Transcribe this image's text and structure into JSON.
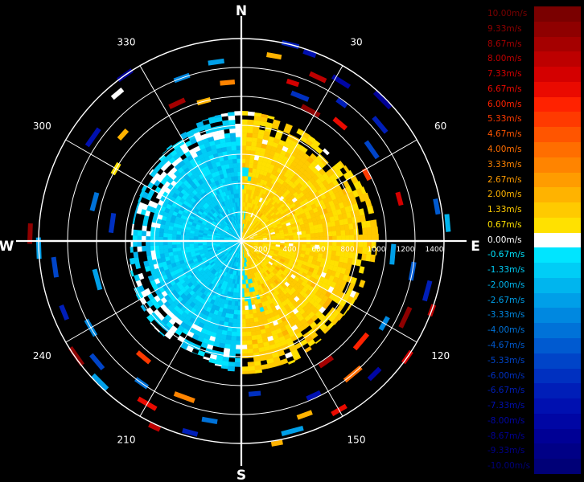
{
  "chart_data": {
    "type": "polar-heatmap",
    "title": "",
    "compass": {
      "north": "N",
      "east": "E",
      "south": "S",
      "west": "W"
    },
    "angle_labels": [
      {
        "deg": 30,
        "label": "30"
      },
      {
        "deg": 60,
        "label": "60"
      },
      {
        "deg": 120,
        "label": "120"
      },
      {
        "deg": 150,
        "label": "150"
      },
      {
        "deg": 210,
        "label": "210"
      },
      {
        "deg": 240,
        "label": "240"
      },
      {
        "deg": 300,
        "label": "300"
      },
      {
        "deg": 330,
        "label": "330"
      }
    ],
    "range_rings": [
      200,
      400,
      600,
      800,
      1000,
      1200,
      1400
    ],
    "range_labels": [
      {
        "value": 200,
        "label": "200"
      },
      {
        "value": 400,
        "label": "400"
      },
      {
        "value": 600,
        "label": "600"
      },
      {
        "value": 800,
        "label": "800"
      },
      {
        "value": 1000,
        "label": "1000"
      },
      {
        "value": 1200,
        "label": "1200"
      },
      {
        "value": 1400,
        "label": "1400"
      }
    ],
    "max_range": 1400,
    "colorbar": {
      "unit": "m/s",
      "entries": [
        {
          "label": "10.00m/s",
          "color": "#7a0000"
        },
        {
          "label": "9.33m/s",
          "color": "#8f0000"
        },
        {
          "label": "8.67m/s",
          "color": "#a50000"
        },
        {
          "label": "8.00m/s",
          "color": "#bd0000"
        },
        {
          "label": "7.33m/s",
          "color": "#d40000"
        },
        {
          "label": "6.67m/s",
          "color": "#ea0a00"
        },
        {
          "label": "6.00m/s",
          "color": "#ff2200"
        },
        {
          "label": "5.33m/s",
          "color": "#ff3a00"
        },
        {
          "label": "4.67m/s",
          "color": "#ff5500"
        },
        {
          "label": "4.00m/s",
          "color": "#ff6e00"
        },
        {
          "label": "3.33m/s",
          "color": "#ff8400"
        },
        {
          "label": "2.67m/s",
          "color": "#ff9c00"
        },
        {
          "label": "2.00m/s",
          "color": "#ffb300"
        },
        {
          "label": "1.33m/s",
          "color": "#ffca00"
        },
        {
          "label": "0.67m/s",
          "color": "#ffe100"
        },
        {
          "label": "0.00m/s",
          "color": "#ffffff"
        },
        {
          "label": "-0.67m/s",
          "color": "#00e5ff"
        },
        {
          "label": "-1.33m/s",
          "color": "#00cdf6"
        },
        {
          "label": "-2.00m/s",
          "color": "#00b5ee"
        },
        {
          "label": "-2.67m/s",
          "color": "#009fe8"
        },
        {
          "label": "-3.33m/s",
          "color": "#0088e0"
        },
        {
          "label": "-4.00m/s",
          "color": "#0072d8"
        },
        {
          "label": "-4.67m/s",
          "color": "#005ad0"
        },
        {
          "label": "-5.33m/s",
          "color": "#0044c8"
        },
        {
          "label": "-6.00m/s",
          "color": "#0030c0"
        },
        {
          "label": "-6.67m/s",
          "color": "#001eb8"
        },
        {
          "label": "-7.33m/s",
          "color": "#0010b0"
        },
        {
          "label": "-8.00m/s",
          "color": "#0006a4"
        },
        {
          "label": "-8.67m/s",
          "color": "#000095"
        },
        {
          "label": "-9.33m/s",
          "color": "#000086"
        },
        {
          "label": "-10.00m/s",
          "color": "#000077"
        }
      ]
    },
    "core_field": {
      "east_half_velocity": 1.0,
      "west_half_velocity": -1.3,
      "core_extent_by_azimuth": [
        {
          "az": 0,
          "range": 900
        },
        {
          "az": 20,
          "range": 880
        },
        {
          "az": 45,
          "range": 860
        },
        {
          "az": 70,
          "range": 930
        },
        {
          "az": 90,
          "range": 950
        },
        {
          "az": 110,
          "range": 900
        },
        {
          "az": 135,
          "range": 860
        },
        {
          "az": 160,
          "range": 920
        },
        {
          "az": 180,
          "range": 920
        },
        {
          "az": 200,
          "range": 840
        },
        {
          "az": 225,
          "range": 850
        },
        {
          "az": 250,
          "range": 800
        },
        {
          "az": 270,
          "range": 760
        },
        {
          "az": 290,
          "range": 760
        },
        {
          "az": 315,
          "range": 800
        },
        {
          "az": 340,
          "range": 870
        }
      ]
    },
    "scattered_echoes": [
      {
        "az": 10,
        "range": 1300,
        "v": 2.3
      },
      {
        "az": 14,
        "range": 1400,
        "v": -6.5
      },
      {
        "az": 20,
        "range": 1380,
        "v": -7.5
      },
      {
        "az": 25,
        "range": 1250,
        "v": 8.0
      },
      {
        "az": 18,
        "range": 1150,
        "v": 7.0
      },
      {
        "az": 22,
        "range": 1080,
        "v": -6.0
      },
      {
        "az": 28,
        "range": 1020,
        "v": 9.3
      },
      {
        "az": 32,
        "range": 1300,
        "v": -8.0
      },
      {
        "az": 36,
        "range": 1180,
        "v": -6.7
      },
      {
        "az": 40,
        "range": 1060,
        "v": 6.5
      },
      {
        "az": 45,
        "range": 1380,
        "v": -8.5
      },
      {
        "az": 50,
        "range": 1250,
        "v": -7.0
      },
      {
        "az": 55,
        "range": 1100,
        "v": -5.5
      },
      {
        "az": 62,
        "range": 980,
        "v": 5.5
      },
      {
        "az": 75,
        "range": 1130,
        "v": 7.5
      },
      {
        "az": 80,
        "range": 1370,
        "v": -5.0
      },
      {
        "az": 85,
        "range": 1430,
        "v": -2.0
      },
      {
        "az": 95,
        "range": 1050,
        "v": -3.0
      },
      {
        "az": 100,
        "range": 1200,
        "v": -5.0
      },
      {
        "az": 105,
        "range": 1330,
        "v": -6.7
      },
      {
        "az": 110,
        "range": 1400,
        "v": 8.0
      },
      {
        "az": 115,
        "range": 1250,
        "v": 9.3
      },
      {
        "az": 120,
        "range": 1140,
        "v": -3.3
      },
      {
        "az": 125,
        "range": 1400,
        "v": 7.3
      },
      {
        "az": 130,
        "range": 1080,
        "v": 6.0
      },
      {
        "az": 135,
        "range": 1300,
        "v": -8.0
      },
      {
        "az": 140,
        "range": 1200,
        "v": 4.0
      },
      {
        "az": 145,
        "range": 1020,
        "v": 8.7
      },
      {
        "az": 150,
        "range": 1350,
        "v": 6.7
      },
      {
        "az": 155,
        "range": 1180,
        "v": -7.3
      },
      {
        "az": 160,
        "range": 1280,
        "v": 2.0
      },
      {
        "az": 165,
        "range": 1360,
        "v": -2.7
      },
      {
        "az": 170,
        "range": 1420,
        "v": 2.0
      },
      {
        "az": 175,
        "range": 1060,
        "v": -6.0
      },
      {
        "az": 190,
        "range": 1260,
        "v": -4.0
      },
      {
        "az": 195,
        "range": 1370,
        "v": -7.0
      },
      {
        "az": 200,
        "range": 1150,
        "v": 3.5
      },
      {
        "az": 205,
        "range": 1420,
        "v": 8.0
      },
      {
        "az": 210,
        "range": 1300,
        "v": 6.7
      },
      {
        "az": 215,
        "range": 1200,
        "v": -4.0
      },
      {
        "az": 220,
        "range": 1050,
        "v": 5.0
      },
      {
        "az": 225,
        "range": 1380,
        "v": -3.0
      },
      {
        "az": 230,
        "range": 1300,
        "v": -5.5
      },
      {
        "az": 235,
        "range": 1390,
        "v": 9.3
      },
      {
        "az": 240,
        "range": 1200,
        "v": -3.3
      },
      {
        "az": 248,
        "range": 1320,
        "v": -6.7
      },
      {
        "az": 255,
        "range": 1030,
        "v": -2.7
      },
      {
        "az": 262,
        "range": 1300,
        "v": -5.3
      },
      {
        "az": 268,
        "range": 1400,
        "v": -3.0
      },
      {
        "az": 272,
        "range": 1460,
        "v": 9.0
      },
      {
        "az": 278,
        "range": 900,
        "v": -6.0
      },
      {
        "az": 285,
        "range": 1050,
        "v": -4.0
      },
      {
        "az": 300,
        "range": 1000,
        "v": 1.0
      },
      {
        "az": 305,
        "range": 1250,
        "v": -7.3
      },
      {
        "az": 312,
        "range": 1100,
        "v": 2.0
      },
      {
        "az": 320,
        "range": 1330,
        "v": 0.0
      },
      {
        "az": 325,
        "range": 1400,
        "v": -8.5
      },
      {
        "az": 335,
        "range": 1050,
        "v": 8.5
      },
      {
        "az": 340,
        "range": 1200,
        "v": -3.3
      },
      {
        "az": 345,
        "range": 1000,
        "v": 2.0
      },
      {
        "az": 352,
        "range": 1250,
        "v": -2.7
      },
      {
        "az": 355,
        "range": 1100,
        "v": 3.0
      }
    ]
  }
}
